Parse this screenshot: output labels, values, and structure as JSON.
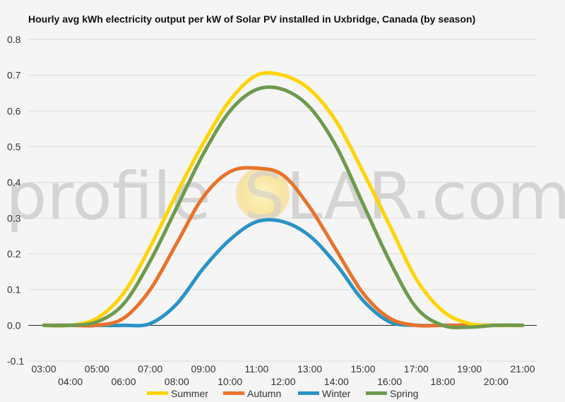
{
  "chart_data": {
    "type": "line",
    "title": "Hourly avg kWh electricity output per kW of Solar PV installed in Uxbridge, Canada (by season)",
    "xlabel": "",
    "ylabel": "",
    "ylim": [
      -0.1,
      0.8
    ],
    "yticks": [
      "-0.1",
      "0.0",
      "0.1",
      "0.2",
      "0.3",
      "0.4",
      "0.5",
      "0.6",
      "0.7",
      "0.8"
    ],
    "x": [
      "03:00",
      "04:00",
      "05:00",
      "06:00",
      "07:00",
      "08:00",
      "09:00",
      "10:00",
      "11:00",
      "12:00",
      "13:00",
      "14:00",
      "15:00",
      "16:00",
      "17:00",
      "18:00",
      "19:00",
      "20:00",
      "21:00"
    ],
    "grid": true,
    "legend_position": "bottom",
    "series": [
      {
        "name": "Summer",
        "color": "#ffd400",
        "values": [
          0.0,
          0.0,
          0.02,
          0.09,
          0.22,
          0.37,
          0.51,
          0.63,
          0.7,
          0.7,
          0.66,
          0.57,
          0.43,
          0.28,
          0.13,
          0.04,
          0.005,
          0.0,
          0.0
        ]
      },
      {
        "name": "Autumn",
        "color": "#e8732a",
        "values": [
          0.0,
          0.0,
          0.0,
          0.02,
          0.1,
          0.23,
          0.36,
          0.43,
          0.44,
          0.42,
          0.33,
          0.21,
          0.09,
          0.02,
          0.0,
          0.0,
          0.0,
          0.0,
          0.0
        ]
      },
      {
        "name": "Winter",
        "color": "#2a93c6",
        "values": [
          0.0,
          0.0,
          0.0,
          0.0,
          0.005,
          0.06,
          0.16,
          0.24,
          0.29,
          0.29,
          0.25,
          0.17,
          0.07,
          0.01,
          0.0,
          0.0,
          0.0,
          0.0,
          0.0
        ]
      },
      {
        "name": "Spring",
        "color": "#6f9a4e",
        "values": [
          0.0,
          0.0,
          0.01,
          0.06,
          0.18,
          0.33,
          0.48,
          0.6,
          0.66,
          0.66,
          0.61,
          0.5,
          0.34,
          0.18,
          0.05,
          0.0,
          -0.005,
          0.0,
          0.0
        ]
      }
    ]
  },
  "watermark": {
    "left": "profile",
    "s_letter": "S",
    "right": "LAR.com"
  }
}
